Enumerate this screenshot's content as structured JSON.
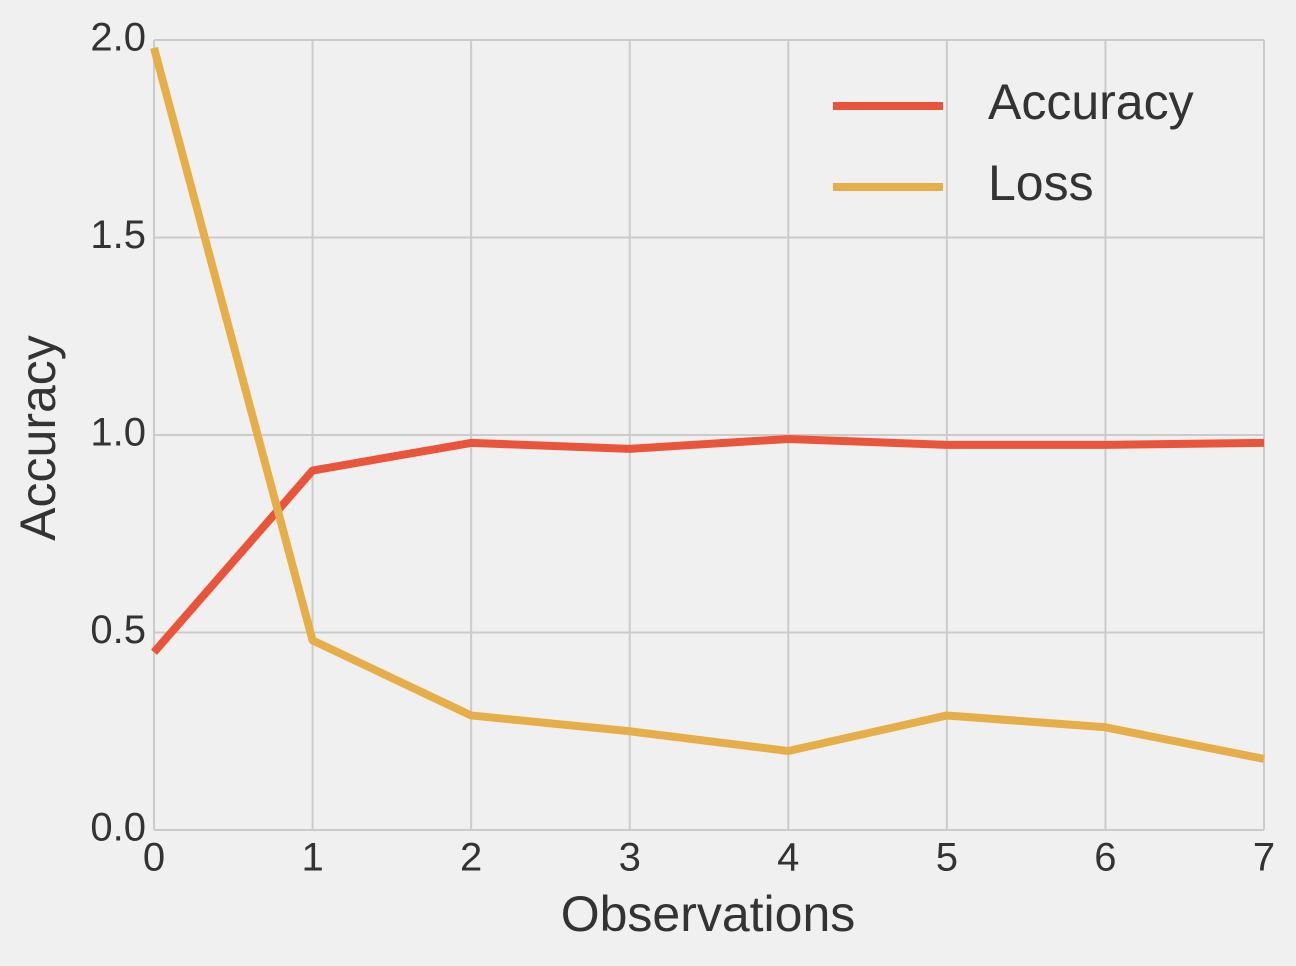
{
  "chart_data": {
    "type": "line",
    "x": [
      0,
      1,
      2,
      3,
      4,
      5,
      6,
      7
    ],
    "series": [
      {
        "name": "Accuracy",
        "color": "#e8553b",
        "values": [
          0.45,
          0.91,
          0.98,
          0.965,
          0.99,
          0.975,
          0.975,
          0.98
        ]
      },
      {
        "name": "Loss",
        "color": "#e5ae48",
        "values": [
          1.98,
          0.48,
          0.29,
          0.25,
          0.2,
          0.29,
          0.26,
          0.18
        ]
      }
    ],
    "xlabel": "Observations",
    "ylabel": "Accuracy",
    "xlim": [
      0,
      7
    ],
    "ylim": [
      0,
      2
    ],
    "xticks": [
      0,
      1,
      2,
      3,
      4,
      5,
      6,
      7
    ],
    "yticks": [
      {
        "value": 0,
        "label": "0.0"
      },
      {
        "value": 0.5,
        "label": "0.5"
      },
      {
        "value": 1,
        "label": "1.0"
      },
      {
        "value": 1.5,
        "label": "1.5"
      },
      {
        "value": 2,
        "label": "2.0"
      }
    ],
    "grid": true,
    "legend": "upper right"
  }
}
